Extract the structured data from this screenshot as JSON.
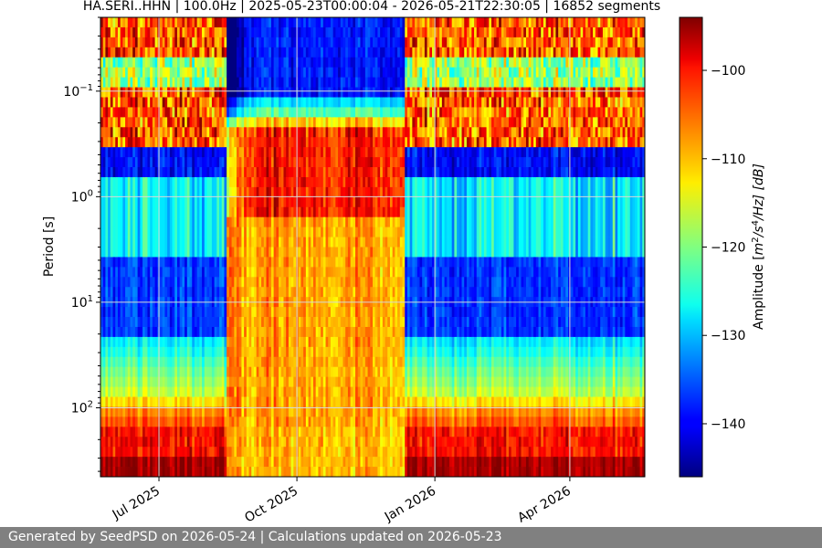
{
  "chart_data": {
    "type": "heatmap",
    "title": "HA.SERI..HHN | 100.0Hz | 2025-05-23T00:00:04 - 2026-05-21T22:30:05 | 16852 segments",
    "xlabel": "",
    "ylabel": "Period [s]",
    "colorbar_label": "Amplitude [m²/s⁴/Hz] [dB]",
    "colorbar_label_parts": {
      "prefix": "Amplitude [",
      "m": "m",
      "m_exp": "2",
      "slash1": "/s",
      "s_exp": "4",
      "rest": "/Hz] [dB]"
    },
    "x_start": "2025-05-23",
    "x_end": "2026-05-21",
    "x_ticks": [
      {
        "date": "2025-07-01",
        "label": "Jul 2025"
      },
      {
        "date": "2025-10-01",
        "label": "Oct 2025"
      },
      {
        "date": "2026-01-01",
        "label": "Jan 2026"
      },
      {
        "date": "2026-04-01",
        "label": "Apr 2026"
      }
    ],
    "y_scale": "log",
    "y_inverted": true,
    "y_range": [
      0.02,
      450
    ],
    "y_ticks": [
      {
        "value": 0.1,
        "base": "10",
        "exp": "−1"
      },
      {
        "value": 1,
        "base": "10",
        "exp": "0"
      },
      {
        "value": 10,
        "base": "10",
        "exp": "1"
      },
      {
        "value": 100,
        "base": "10",
        "exp": "2"
      }
    ],
    "colormap": "jet",
    "color_range_db": [
      -146,
      -94
    ],
    "colorbar_ticks": [
      {
        "value": -100,
        "label": "−100"
      },
      {
        "value": -110,
        "label": "−110"
      },
      {
        "value": -120,
        "label": "−120"
      },
      {
        "value": -130,
        "label": "−130"
      },
      {
        "value": -140,
        "label": "−140"
      }
    ],
    "grid": true,
    "high_noise_period": {
      "start": "2025-08-15",
      "end": "2025-12-12"
    }
  },
  "footer": {
    "text": "Generated by SeedPSD on 2026-05-24 | Calculations updated on 2026-05-23"
  },
  "colors": {
    "footer_bg": "#808080",
    "footer_text": "#ffffff",
    "grid": "#d8d8d8"
  }
}
